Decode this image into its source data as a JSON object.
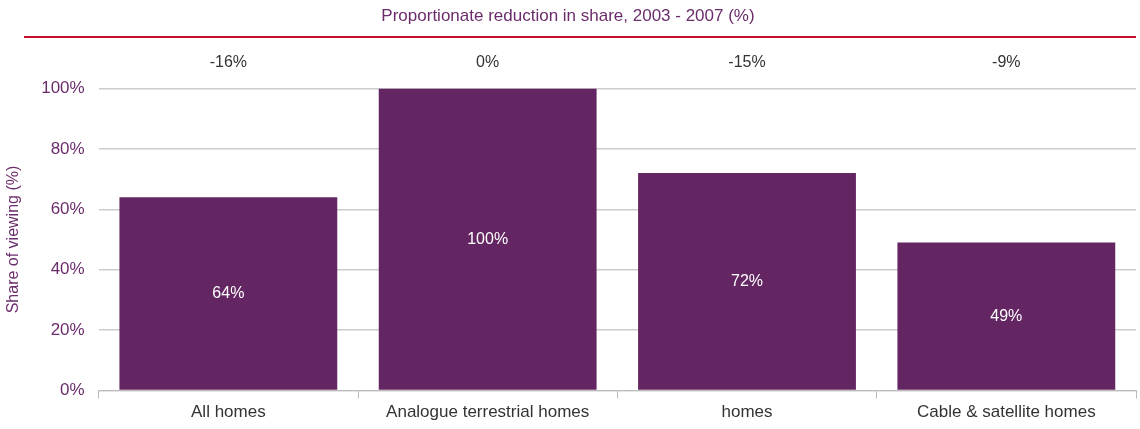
{
  "chart_data": {
    "type": "bar",
    "title": "Proportionate reduction in share, 2003 - 2007 (%)",
    "ylabel": "Share of viewing (%)",
    "categories": [
      "All homes",
      "Analogue terrestrial homes",
      "homes",
      "Cable & satellite homes"
    ],
    "values": [
      64,
      100,
      72,
      49
    ],
    "color": "#642663",
    "value_labels": [
      "64%",
      "100%",
      "72%",
      "49%"
    ],
    "ylim": [
      0,
      100
    ],
    "yticks": [
      {
        "value": 0,
        "label": "0%"
      },
      {
        "value": 20,
        "label": "20%"
      },
      {
        "value": 40,
        "label": "40%"
      },
      {
        "value": 60,
        "label": "60%"
      },
      {
        "value": 80,
        "label": "80%"
      },
      {
        "value": 100,
        "label": "100%"
      }
    ],
    "annotations": [
      "-16%",
      "0%",
      "-15%",
      "-9%"
    ],
    "grid": "y",
    "legend": false
  }
}
